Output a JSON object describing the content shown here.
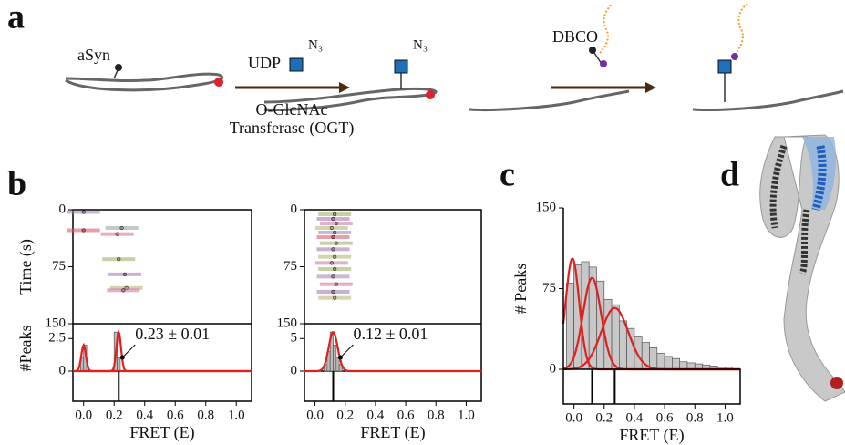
{
  "panel_labels": [
    "a",
    "b",
    "c",
    "d"
  ],
  "scheme": {
    "protein_label": "aSyn",
    "donor": "UDP",
    "azide": "N₃",
    "azide2": "N₃",
    "enzyme_line1": "O-GlcNAc",
    "enzyme_line2": "Transferase (OGT)",
    "reagent": "DBCO"
  },
  "chart_data": [
    {
      "type": "trace",
      "xlabel": "FRET (E)",
      "ylabel": "Time (s)",
      "peaks_label": "#Peaks",
      "xlim": [
        -0.07,
        1.1
      ],
      "xticks": [
        {
          "value": 0,
          "label": "0.0"
        },
        0.2,
        0.4,
        0.6,
        0.8,
        {
          "value": 1,
          "label": "1.0"
        }
      ],
      "ylim": [
        0,
        150
      ],
      "yticks": [
        0,
        75,
        150
      ],
      "peaks_ylim": [
        0,
        3.5
      ],
      "peaks_yticks": [
        0,
        2.5
      ],
      "points": {
        "x": [
          0.0,
          0.25,
          0.0,
          0.22,
          0.23,
          0.27,
          0.28,
          0.26
        ],
        "y": [
          3,
          24,
          27,
          32,
          65,
          85,
          103,
          106
        ],
        "colors": [
          "#9b7fb0",
          "#999999",
          "#d0506a",
          "#d06a9a",
          "#9aaa60",
          "#a070b0",
          "#b0b070",
          "#d070a0"
        ]
      },
      "bins": [
        -0.02,
        0.0,
        0.02,
        0.04,
        0.06,
        0.08,
        0.1,
        0.12,
        0.14,
        0.16,
        0.18,
        0.2,
        0.22,
        0.24
      ],
      "counts": [
        1,
        2,
        0,
        0,
        0,
        0,
        0,
        0,
        0,
        0,
        0,
        3,
        1
      ],
      "fits": [
        {
          "mu": 0.0,
          "amp": 2,
          "sigma": 0.015
        },
        {
          "mu": 0.23,
          "amp": 3,
          "sigma": 0.015
        }
      ],
      "annotation": "0.23 ± 0.01",
      "markers": [
        0.23
      ]
    },
    {
      "type": "trace",
      "xlabel": "FRET (E)",
      "xlim": [
        -0.07,
        1.1
      ],
      "xticks": [
        {
          "value": 0,
          "label": "0.0"
        },
        0.2,
        0.4,
        0.6,
        0.8,
        {
          "value": 1,
          "label": "1.0"
        }
      ],
      "ylim": [
        0,
        150
      ],
      "yticks": [
        0,
        75,
        150
      ],
      "peaks_ylim": [
        0,
        7
      ],
      "peaks_yticks": [
        0,
        5
      ],
      "points": {
        "x": [
          0.13,
          0.12,
          0.14,
          0.11,
          0.13,
          0.12,
          0.14,
          0.12,
          0.13,
          0.11,
          0.13,
          0.12,
          0.14,
          0.12,
          0.13
        ],
        "y": [
          6,
          12,
          18,
          24,
          30,
          36,
          44,
          52,
          62,
          70,
          78,
          88,
          98,
          108,
          116
        ],
        "colors": [
          "#9aaa60",
          "#a070b0",
          "#d070a0",
          "#b0b070",
          "#9b7fb0",
          "#d0506a",
          "#9aaa60",
          "#a070b0",
          "#b0b070",
          "#d070a0",
          "#9aaa60",
          "#9b7fb0",
          "#d06a9a",
          "#a070b0",
          "#b0b070"
        ]
      },
      "bins": [
        0.06,
        0.08,
        0.1,
        0.12,
        0.14,
        0.16,
        0.18
      ],
      "counts": [
        1,
        3,
        6,
        4,
        2,
        1
      ],
      "fits": [
        {
          "mu": 0.12,
          "amp": 6,
          "sigma": 0.03
        }
      ],
      "annotation": "0.12 ± 0.01",
      "markers": [
        0.12
      ]
    },
    {
      "type": "histogram",
      "xlabel": "FRET (E)",
      "ylabel": "# Peaks",
      "xlim": [
        -0.07,
        1.1
      ],
      "xticks": [
        {
          "value": 0,
          "label": "0.0"
        },
        0.2,
        0.4,
        0.6,
        0.8,
        {
          "value": 1,
          "label": "1.0"
        }
      ],
      "ylim": [
        0,
        150
      ],
      "yticks": [
        0,
        75,
        150
      ],
      "bins": [
        -0.05,
        0.0,
        0.05,
        0.1,
        0.15,
        0.2,
        0.25,
        0.3,
        0.35,
        0.4,
        0.45,
        0.5,
        0.55,
        0.6,
        0.65,
        0.7,
        0.75,
        0.8,
        0.85,
        0.9,
        0.95,
        1.0,
        1.05
      ],
      "counts": [
        80,
        97,
        100,
        95,
        82,
        65,
        60,
        45,
        38,
        30,
        25,
        20,
        15,
        12,
        10,
        7,
        6,
        5,
        4,
        3,
        2,
        2
      ],
      "color": "#c8c8c8",
      "fits": [
        {
          "mu": -0.01,
          "amp": 103,
          "sigma": 0.045
        },
        {
          "mu": 0.12,
          "amp": 85,
          "sigma": 0.06
        },
        {
          "mu": 0.27,
          "amp": 57,
          "sigma": 0.09
        }
      ],
      "markers": [
        0.12,
        0.27
      ]
    }
  ]
}
